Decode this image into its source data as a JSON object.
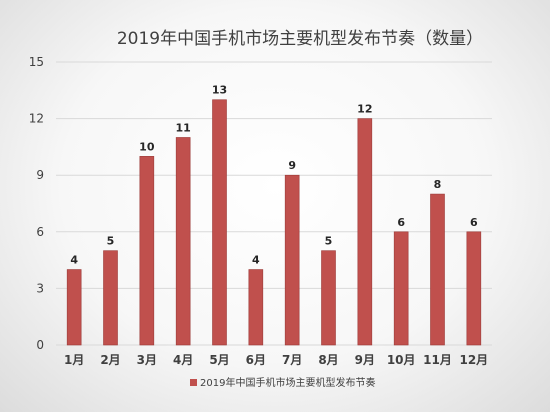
{
  "chart_data": {
    "type": "bar",
    "title": "2019年中国手机市场主要机型发布节奏（数量）",
    "categories": [
      "1月",
      "2月",
      "3月",
      "4月",
      "5月",
      "6月",
      "7月",
      "8月",
      "9月",
      "10月",
      "11月",
      "12月"
    ],
    "series": [
      {
        "name": "2019年中国手机市场主要机型发布节奏",
        "values": [
          4,
          5,
          10,
          11,
          13,
          4,
          9,
          5,
          12,
          6,
          8,
          6
        ]
      }
    ],
    "y_ticks": [
      "0",
      "3",
      "6",
      "9",
      "12",
      "15"
    ],
    "ylim": [
      0,
      15
    ],
    "grid": true,
    "legend": "bottom",
    "colors": {
      "bar": "#c0504d",
      "bar_edge": "#9b3a38",
      "grid": "#d9d9d9"
    }
  }
}
